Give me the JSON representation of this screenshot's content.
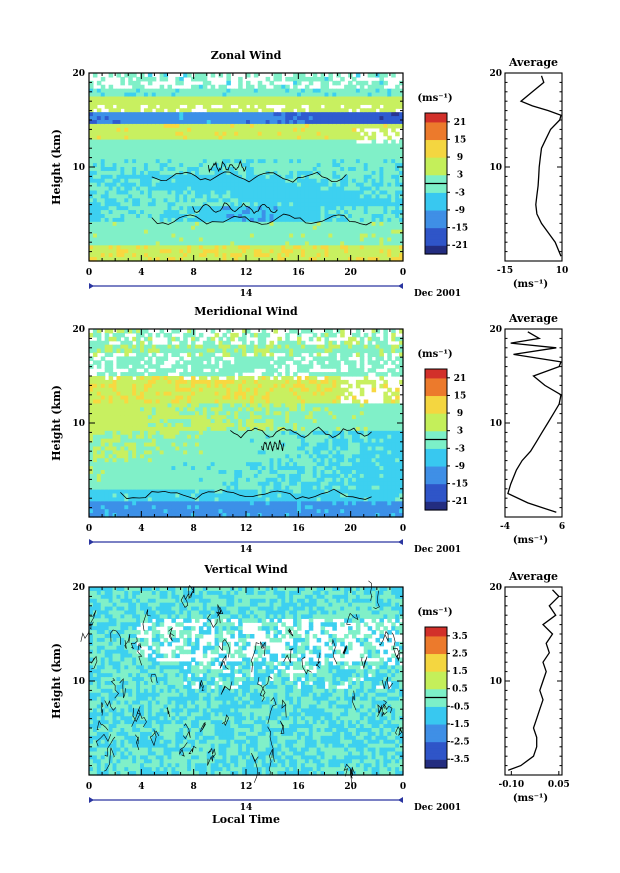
{
  "chart_data": [
    {
      "type": "heatmap",
      "title": "Zonal Wind",
      "ylabel": "Height (km)",
      "ylim": [
        0,
        20
      ],
      "ytick_labels": [
        "20",
        "10"
      ],
      "xtick_labels": [
        "0",
        "4",
        "8",
        "12",
        "16",
        "20",
        "0"
      ],
      "xlim": [
        0,
        24
      ],
      "day_label": "14",
      "month_label": "Dec 2001",
      "colorbar": {
        "unit": "(ms⁻¹)",
        "tick_labels": [
          "21",
          "15",
          "9",
          "3",
          "-3",
          "-9",
          "-15",
          "-21"
        ],
        "range": [
          -24,
          24
        ]
      },
      "average": {
        "title": "Average",
        "xtick_labels": [
          "-15",
          "10"
        ],
        "xlim": [
          -15,
          10
        ],
        "unit": "(ms⁻¹)",
        "ytick_labels": [
          "20",
          "10"
        ],
        "height": [
          0.5,
          2,
          3,
          4,
          5,
          6,
          7,
          8,
          9,
          10,
          11,
          12,
          13,
          14,
          15,
          15.5,
          16,
          16.5,
          17,
          18,
          19,
          19.7
        ],
        "values": [
          10,
          7,
          4,
          1,
          -1,
          -1.5,
          -1,
          -0.5,
          -0.2,
          0,
          0.5,
          1,
          3,
          5,
          9,
          10,
          4,
          -3,
          -8,
          -3,
          2,
          1
        ]
      }
    },
    {
      "type": "heatmap",
      "title": "Meridional Wind",
      "ylabel": "Height (km)",
      "ylim": [
        0,
        20
      ],
      "ytick_labels": [
        "20",
        "10"
      ],
      "xtick_labels": [
        "0",
        "4",
        "8",
        "12",
        "16",
        "20",
        "0"
      ],
      "xlim": [
        0,
        24
      ],
      "day_label": "14",
      "month_label": "Dec 2001",
      "colorbar": {
        "unit": "(ms⁻¹)",
        "tick_labels": [
          "21",
          "15",
          "9",
          "3",
          "-3",
          "-9",
          "-15",
          "-21"
        ],
        "range": [
          -24,
          24
        ]
      },
      "average": {
        "title": "Average",
        "xtick_labels": [
          "-4",
          "6"
        ],
        "xlim": [
          -4,
          6
        ],
        "unit": "(ms⁻¹)",
        "ytick_labels": [
          "20",
          "10"
        ],
        "height": [
          0.5,
          1.5,
          2.5,
          3.5,
          5,
          6,
          7,
          8,
          9,
          10,
          11,
          12,
          13,
          14,
          15,
          16,
          16.5,
          17.3,
          18,
          18.5,
          19,
          19.7
        ],
        "values": [
          5,
          0,
          -3.5,
          -3,
          -2,
          -1,
          0.5,
          1.5,
          2.5,
          3.5,
          4.5,
          5.5,
          6,
          3,
          1,
          5.5,
          6,
          -2.5,
          5,
          -3,
          2,
          0
        ]
      }
    },
    {
      "type": "heatmap",
      "title": "Vertical Wind",
      "xlabel": "Local Time",
      "ylabel": "Height (km)",
      "ylim": [
        0,
        20
      ],
      "ytick_labels": [
        "20",
        "10"
      ],
      "xtick_labels": [
        "0",
        "4",
        "8",
        "12",
        "16",
        "20",
        "0"
      ],
      "xlim": [
        0,
        24
      ],
      "day_label": "14",
      "month_label": "Dec 2001",
      "colorbar": {
        "unit": "(ms⁻¹)",
        "tick_labels": [
          "3.5",
          "2.5",
          "1.5",
          "0.5",
          "-0.5",
          "-1.5",
          "-2.5",
          "-3.5"
        ],
        "range": [
          -4,
          4
        ]
      },
      "average": {
        "title": "Average",
        "xtick_labels": [
          "-0.10",
          "0.05"
        ],
        "xlim": [
          -0.12,
          0.06
        ],
        "unit": "(ms⁻¹)",
        "ytick_labels": [
          "20",
          "10"
        ],
        "height": [
          0.5,
          1,
          2,
          3,
          4,
          5,
          6,
          7,
          8,
          9,
          10,
          11,
          12,
          13,
          14,
          15,
          16,
          17,
          18,
          19,
          19.7
        ],
        "values": [
          -0.11,
          -0.07,
          -0.03,
          -0.02,
          -0.02,
          -0.03,
          -0.02,
          -0.01,
          0.0,
          -0.01,
          0.0,
          0.01,
          0.0,
          0.02,
          0.01,
          0.03,
          0.0,
          0.04,
          0.02,
          0.05,
          0.03
        ]
      }
    }
  ]
}
